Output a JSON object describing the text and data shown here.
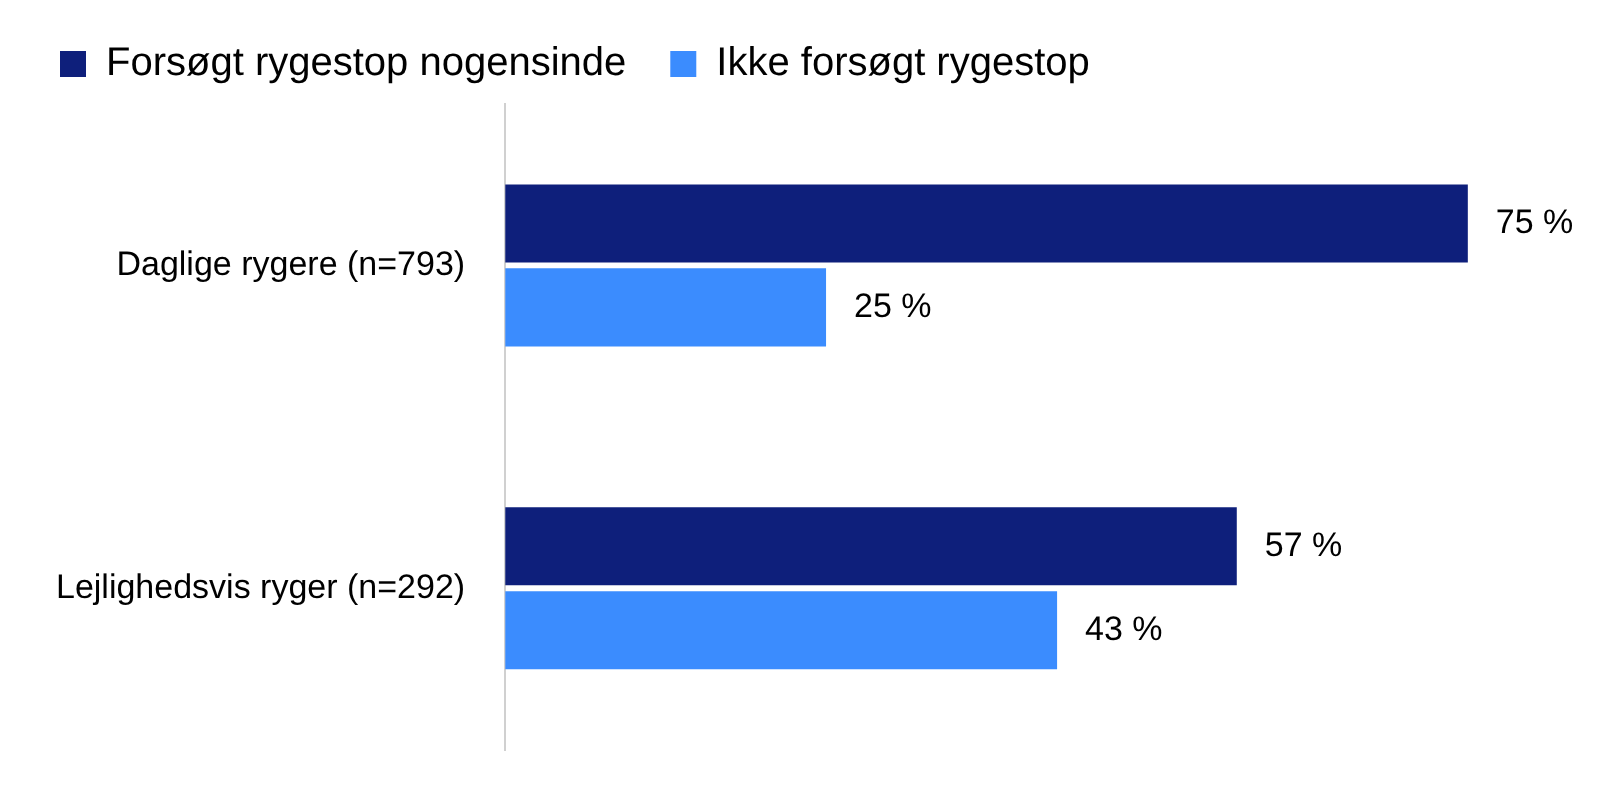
{
  "chart_data": {
    "type": "bar",
    "orientation": "horizontal",
    "categories": [
      "Daglige rygere (n=793)",
      "Lejlighedsvis ryger (n=292)"
    ],
    "series": [
      {
        "name": "Forsøgt rygestop nogensinde",
        "color": "#0e1f7b",
        "values": [
          75,
          57
        ],
        "value_labels": [
          "75 %",
          "57 %"
        ]
      },
      {
        "name": "Ikke forsøgt rygestop",
        "color": "#3b8cfe",
        "values": [
          25,
          43
        ],
        "value_labels": [
          "25 %",
          "43 %"
        ]
      }
    ],
    "tick_labels": "y",
    "legend": "top"
  }
}
